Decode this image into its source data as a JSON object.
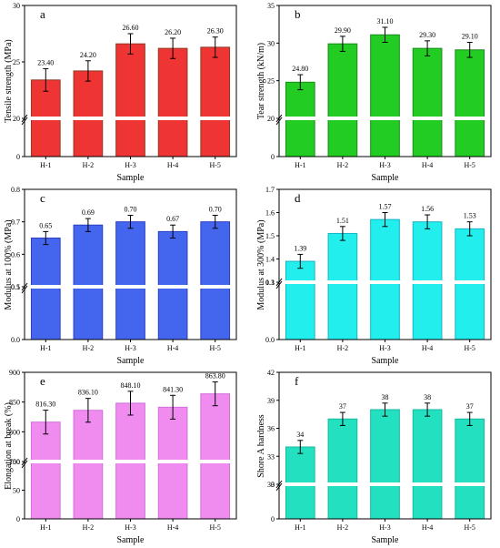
{
  "chart_data": [
    {
      "panel": "a",
      "type": "bar",
      "ylabel": "Tensile strength (MPa)",
      "xlabel": "Sample",
      "categories": [
        "H-1",
        "H-2",
        "H-3",
        "H-4",
        "H-5"
      ],
      "values": [
        23.4,
        24.2,
        26.6,
        26.2,
        26.3
      ],
      "value_labels": [
        "23.40",
        "24.20",
        "26.60",
        "26.20",
        "26.30"
      ],
      "errors": [
        1.0,
        0.9,
        0.9,
        0.9,
        0.9
      ],
      "yticks": [
        "0",
        "20",
        "25",
        "30"
      ],
      "axis_break": true,
      "bar_color": "#ef3434",
      "bar_edge_color": "#8e3a22"
    },
    {
      "panel": "b",
      "type": "bar",
      "ylabel": "Tear strength (kN/m)",
      "xlabel": "Sample",
      "categories": [
        "H-1",
        "H-2",
        "H-3",
        "H-4",
        "H-5"
      ],
      "values": [
        24.8,
        29.9,
        31.1,
        29.3,
        29.1
      ],
      "value_labels": [
        "24.80",
        "29.90",
        "31.10",
        "29.30",
        "29.10"
      ],
      "errors": [
        1.0,
        1.0,
        1.0,
        1.0,
        1.0
      ],
      "yticks": [
        "0",
        "20",
        "25",
        "30",
        "35"
      ],
      "axis_break": true,
      "bar_color": "#22cc22",
      "bar_edge_color": "#1a8a1a"
    },
    {
      "panel": "c",
      "type": "bar",
      "ylabel": "Modulus at 100% (MPa)",
      "xlabel": "Sample",
      "categories": [
        "H-1",
        "H-2",
        "H-3",
        "H-4",
        "H-5"
      ],
      "values": [
        0.65,
        0.69,
        0.7,
        0.67,
        0.7
      ],
      "value_labels": [
        "0.65",
        "0.69",
        "0.70",
        "0.67",
        "0.70"
      ],
      "errors": [
        0.02,
        0.02,
        0.02,
        0.02,
        0.02
      ],
      "yticks": [
        "0.0",
        "0.1",
        "0.5",
        "0.6",
        "0.7",
        "0.8"
      ],
      "axis_break": true,
      "bar_color": "#4466ee",
      "bar_edge_color": "#2a3ec0"
    },
    {
      "panel": "d",
      "type": "bar",
      "ylabel": "Modulus at 300% (MPa)",
      "xlabel": "Sample",
      "categories": [
        "H-1",
        "H-2",
        "H-3",
        "H-4",
        "H-5"
      ],
      "values": [
        1.39,
        1.51,
        1.57,
        1.56,
        1.53
      ],
      "value_labels": [
        "1.39",
        "1.51",
        "1.57",
        "1.56",
        "1.53"
      ],
      "errors": [
        0.03,
        0.03,
        0.03,
        0.03,
        0.03
      ],
      "yticks": [
        "0.0",
        "0.1",
        "1.3",
        "1.4",
        "1.5",
        "1.6",
        "1.7"
      ],
      "axis_break": true,
      "bar_color": "#22eeee",
      "bar_edge_color": "#18b4c4"
    },
    {
      "panel": "e",
      "type": "bar",
      "ylabel": "Elongation at break (%)",
      "xlabel": "Sample",
      "categories": [
        "H-1",
        "H-2",
        "H-3",
        "H-4",
        "H-5"
      ],
      "values": [
        816.3,
        836.1,
        848.1,
        841.3,
        863.8
      ],
      "value_labels": [
        "816.30",
        "836.10",
        "848.10",
        "841.30",
        "863.80"
      ],
      "errors": [
        20,
        20,
        20,
        20,
        20
      ],
      "yticks": [
        "0",
        "50",
        "100",
        "750",
        "800",
        "850",
        "900"
      ],
      "axis_break": true,
      "bar_color": "#f08cf0",
      "bar_edge_color": "#d070d8"
    },
    {
      "panel": "f",
      "type": "bar",
      "ylabel": "Shore A hardness",
      "xlabel": "Sample",
      "categories": [
        "H-1",
        "H-2",
        "H-3",
        "H-4",
        "H-5"
      ],
      "values": [
        34,
        37,
        38,
        38,
        37
      ],
      "value_labels": [
        "34",
        "37",
        "38",
        "38",
        "37"
      ],
      "errors": [
        0.7,
        0.7,
        0.7,
        0.7,
        0.7
      ],
      "yticks": [
        "0",
        "3",
        "30",
        "33",
        "36",
        "39",
        "42"
      ],
      "axis_break": true,
      "bar_color": "#22e0c0",
      "bar_edge_color": "#18b8a0"
    }
  ]
}
